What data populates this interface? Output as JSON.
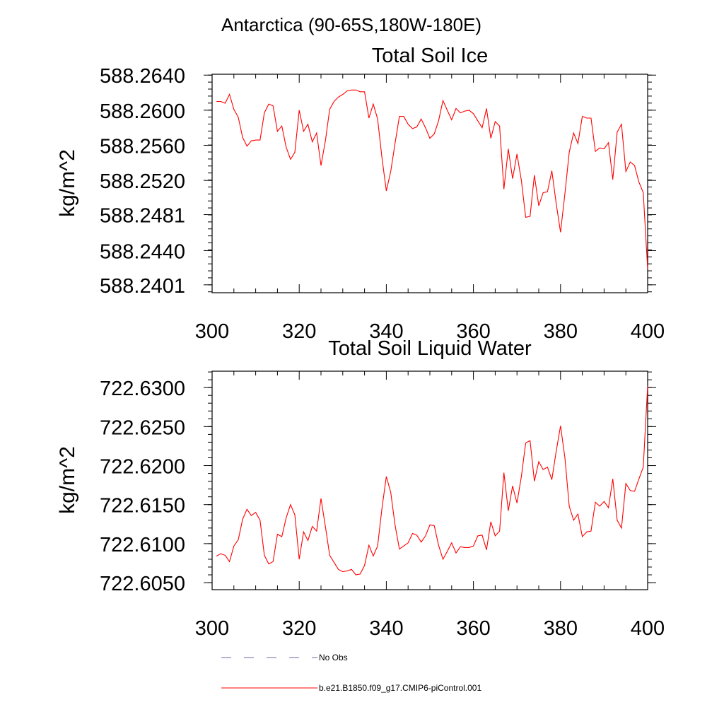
{
  "suptitle": "Antarctica (90-65S,180W-180E)",
  "colors": {
    "line": "#ff0000",
    "obs": "#6a6aa8",
    "axis": "#000000"
  },
  "legend": [
    {
      "label": "No Obs",
      "style": "dashed",
      "color": "#6a6aa8"
    },
    {
      "label": "b.e21.B1850.f09_g17.CMIP6-piControl.001",
      "style": "solid",
      "color": "#ff0000"
    }
  ],
  "chart_data": [
    {
      "type": "line",
      "title": "Total Soil Ice",
      "ylabel": "kg/m^2",
      "xlabel": "",
      "xlim": [
        300,
        400
      ],
      "ylim": [
        588.2392,
        588.2641
      ],
      "xticks": [
        300,
        320,
        340,
        360,
        380,
        400
      ],
      "yticks": [
        588.2401,
        588.244,
        588.2481,
        588.252,
        588.256,
        588.26,
        588.264
      ],
      "ytick_labels": [
        "588.2401",
        "588.2440",
        "588.2481",
        "588.2520",
        "588.2560",
        "588.2600",
        "588.2640"
      ],
      "x": [
        301,
        302,
        303,
        304,
        305,
        306,
        307,
        308,
        309,
        310,
        311,
        312,
        313,
        314,
        315,
        316,
        317,
        318,
        319,
        320,
        321,
        322,
        323,
        324,
        325,
        326,
        327,
        328,
        329,
        330,
        331,
        332,
        333,
        334,
        335,
        336,
        337,
        338,
        339,
        340,
        341,
        342,
        343,
        344,
        345,
        346,
        347,
        348,
        349,
        350,
        351,
        352,
        353,
        354,
        355,
        356,
        357,
        358,
        359,
        360,
        361,
        362,
        363,
        364,
        365,
        366,
        367,
        368,
        369,
        370,
        371,
        372,
        373,
        374,
        375,
        376,
        377,
        378,
        379,
        380,
        381,
        382,
        383,
        384,
        385,
        386,
        387,
        388,
        389,
        390,
        391,
        392,
        393,
        394,
        395,
        396,
        397,
        398,
        399,
        400
      ],
      "series": [
        {
          "values": [
            588.261,
            588.261,
            588.2608,
            588.2618,
            588.2601,
            588.2592,
            588.2569,
            588.2559,
            588.2565,
            588.2566,
            588.2566,
            588.2597,
            588.2607,
            588.2605,
            588.2576,
            588.2582,
            588.2558,
            588.2544,
            588.2552,
            588.26,
            588.2576,
            588.2584,
            588.2564,
            588.2574,
            588.2537,
            588.2565,
            588.2601,
            588.261,
            588.2615,
            588.2618,
            588.2622,
            588.2623,
            588.2623,
            588.2621,
            588.2621,
            588.2591,
            588.2607,
            588.259,
            588.2546,
            588.2508,
            588.253,
            588.2562,
            588.2593,
            588.2593,
            588.2584,
            588.2579,
            588.2581,
            588.259,
            588.258,
            588.2568,
            588.2573,
            588.2588,
            588.2611,
            588.26,
            588.2589,
            588.2602,
            588.2597,
            588.2599,
            588.26,
            588.2596,
            588.2588,
            588.258,
            588.2602,
            588.2568,
            588.2587,
            588.2582,
            588.251,
            588.2556,
            588.2522,
            588.255,
            588.252,
            588.2478,
            588.2479,
            588.2526,
            588.2491,
            588.2506,
            588.2507,
            588.2531,
            588.2494,
            588.2461,
            588.2505,
            588.2552,
            588.2574,
            588.2562,
            588.2593,
            588.2591,
            588.2591,
            588.2553,
            588.2557,
            588.2556,
            588.2563,
            588.2521,
            588.2575,
            588.2584,
            588.253,
            588.2541,
            588.2537,
            588.2518,
            588.2506,
            588.2419
          ]
        }
      ]
    },
    {
      "type": "line",
      "title": "Total Soil Liquid Water",
      "ylabel": "kg/m^2",
      "xlabel": "",
      "xlim": [
        300,
        400
      ],
      "ylim": [
        722.6041,
        722.6321
      ],
      "xticks": [
        300,
        320,
        340,
        360,
        380,
        400
      ],
      "yticks": [
        722.605,
        722.61,
        722.615,
        722.62,
        722.625,
        722.63
      ],
      "ytick_labels": [
        "722.6050",
        "722.6100",
        "722.6150",
        "722.6200",
        "722.6250",
        "722.6300"
      ],
      "x": [
        301,
        302,
        303,
        304,
        305,
        306,
        307,
        308,
        309,
        310,
        311,
        312,
        313,
        314,
        315,
        316,
        317,
        318,
        319,
        320,
        321,
        322,
        323,
        324,
        325,
        326,
        327,
        328,
        329,
        330,
        331,
        332,
        333,
        334,
        335,
        336,
        337,
        338,
        339,
        340,
        341,
        342,
        343,
        344,
        345,
        346,
        347,
        348,
        349,
        350,
        351,
        352,
        353,
        354,
        355,
        356,
        357,
        358,
        359,
        360,
        361,
        362,
        363,
        364,
        365,
        366,
        367,
        368,
        369,
        370,
        371,
        372,
        373,
        374,
        375,
        376,
        377,
        378,
        379,
        380,
        381,
        382,
        383,
        384,
        385,
        386,
        387,
        388,
        389,
        390,
        391,
        392,
        393,
        394,
        395,
        396,
        397,
        398,
        399,
        400
      ],
      "series": [
        {
          "values": [
            722.6084,
            722.6087,
            722.6085,
            722.6077,
            722.6097,
            722.6105,
            722.6131,
            722.6144,
            722.6136,
            722.614,
            722.613,
            722.6085,
            722.6074,
            722.6077,
            722.6112,
            722.6109,
            722.6133,
            722.615,
            722.6137,
            722.608,
            722.6115,
            722.6104,
            722.6122,
            722.6116,
            722.6158,
            722.6122,
            722.6085,
            722.6076,
            722.6067,
            722.6064,
            722.6065,
            722.6067,
            722.606,
            722.6061,
            722.6072,
            722.6098,
            722.6084,
            722.6097,
            722.6145,
            722.6186,
            722.6166,
            722.6124,
            722.6093,
            722.6097,
            722.6101,
            722.6113,
            722.6111,
            722.6102,
            722.611,
            722.6124,
            722.6123,
            722.6098,
            722.608,
            722.609,
            722.6101,
            722.6088,
            722.6096,
            722.6095,
            722.6095,
            722.6097,
            722.611,
            722.6111,
            722.6092,
            722.6128,
            722.611,
            722.6116,
            722.6191,
            722.6142,
            722.6174,
            722.6152,
            722.6186,
            722.6229,
            722.6232,
            722.618,
            722.6205,
            722.6195,
            722.6198,
            722.6182,
            722.6218,
            722.6251,
            722.621,
            722.6148,
            722.613,
            722.6138,
            722.6109,
            722.6115,
            722.6116,
            722.6153,
            722.6148,
            722.6154,
            722.6146,
            722.6183,
            722.613,
            722.612,
            722.6177,
            722.6168,
            722.6167,
            722.6183,
            722.6198,
            722.6302
          ]
        }
      ]
    }
  ]
}
